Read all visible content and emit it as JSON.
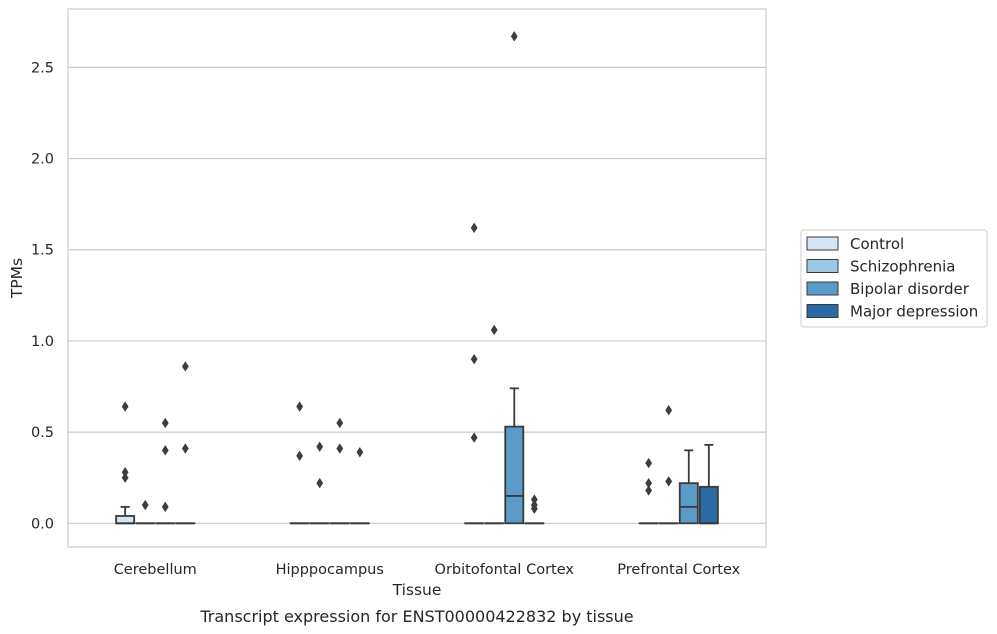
{
  "chart_data": {
    "type": "box",
    "title": "",
    "xlabel": "Tissue",
    "ylabel": "TPMs",
    "caption": "Transcript expression for ENST00000422832 by tissue",
    "ylim": [
      -0.13,
      2.82
    ],
    "yticks": [
      "0.0",
      "0.5",
      "1.0",
      "1.5",
      "2.0",
      "2.5"
    ],
    "grid": "horizontal",
    "legend_position": "right",
    "categories": [
      "Cerebellum",
      "Hipppocampus",
      "Orbitofontal Cortex",
      "Prefrontal Cortex"
    ],
    "series": [
      {
        "name": "Control",
        "color": "#d6e5f4",
        "boxes": [
          {
            "q1": 0.0,
            "median": 0.0,
            "q3": 0.04,
            "whisker_low": 0.0,
            "whisker_high": 0.09,
            "outliers": [
              0.25,
              0.28,
              0.64
            ]
          },
          {
            "q1": 0.0,
            "median": 0.0,
            "q3": 0.0,
            "whisker_low": 0.0,
            "whisker_high": 0.0,
            "outliers": [
              0.37,
              0.64
            ]
          },
          {
            "q1": 0.0,
            "median": 0.0,
            "q3": 0.0,
            "whisker_low": 0.0,
            "whisker_high": 0.0,
            "outliers": [
              0.47,
              0.9,
              1.62
            ]
          },
          {
            "q1": 0.0,
            "median": 0.0,
            "q3": 0.0,
            "whisker_low": 0.0,
            "whisker_high": 0.0,
            "outliers": [
              0.18,
              0.22,
              0.33
            ]
          }
        ]
      },
      {
        "name": "Schizophrenia",
        "color": "#9ec8e1",
        "boxes": [
          {
            "q1": 0.0,
            "median": 0.0,
            "q3": 0.0,
            "whisker_low": 0.0,
            "whisker_high": 0.0,
            "outliers": [
              0.1
            ]
          },
          {
            "q1": 0.0,
            "median": 0.0,
            "q3": 0.0,
            "whisker_low": 0.0,
            "whisker_high": 0.0,
            "outliers": [
              0.22,
              0.42
            ]
          },
          {
            "q1": 0.0,
            "median": 0.0,
            "q3": 0.0,
            "whisker_low": 0.0,
            "whisker_high": 0.0,
            "outliers": [
              1.06
            ]
          },
          {
            "q1": 0.0,
            "median": 0.0,
            "q3": 0.0,
            "whisker_low": 0.0,
            "whisker_high": 0.0,
            "outliers": [
              0.23,
              0.62
            ]
          }
        ]
      },
      {
        "name": "Bipolar disorder",
        "color": "#5b9bc8",
        "boxes": [
          {
            "q1": 0.0,
            "median": 0.0,
            "q3": 0.0,
            "whisker_low": 0.0,
            "whisker_high": 0.0,
            "outliers": [
              0.09,
              0.4,
              0.55
            ]
          },
          {
            "q1": 0.0,
            "median": 0.0,
            "q3": 0.0,
            "whisker_low": 0.0,
            "whisker_high": 0.0,
            "outliers": [
              0.41,
              0.55
            ]
          },
          {
            "q1": 0.0,
            "median": 0.15,
            "q3": 0.53,
            "whisker_low": 0.0,
            "whisker_high": 0.74,
            "outliers": [
              2.67
            ]
          },
          {
            "q1": 0.0,
            "median": 0.09,
            "q3": 0.22,
            "whisker_low": 0.0,
            "whisker_high": 0.4,
            "outliers": []
          }
        ]
      },
      {
        "name": "Major depression",
        "color": "#2b6aa5",
        "boxes": [
          {
            "q1": 0.0,
            "median": 0.0,
            "q3": 0.0,
            "whisker_low": 0.0,
            "whisker_high": 0.0,
            "outliers": [
              0.41,
              0.86
            ]
          },
          {
            "q1": 0.0,
            "median": 0.0,
            "q3": 0.0,
            "whisker_low": 0.0,
            "whisker_high": 0.0,
            "outliers": [
              0.39
            ]
          },
          {
            "q1": 0.0,
            "median": 0.0,
            "q3": 0.0,
            "whisker_low": 0.0,
            "whisker_high": 0.0,
            "outliers": [
              0.08,
              0.1,
              0.13
            ]
          },
          {
            "q1": 0.0,
            "median": 0.0,
            "q3": 0.2,
            "whisker_low": 0.0,
            "whisker_high": 0.43,
            "outliers": []
          }
        ]
      }
    ]
  }
}
